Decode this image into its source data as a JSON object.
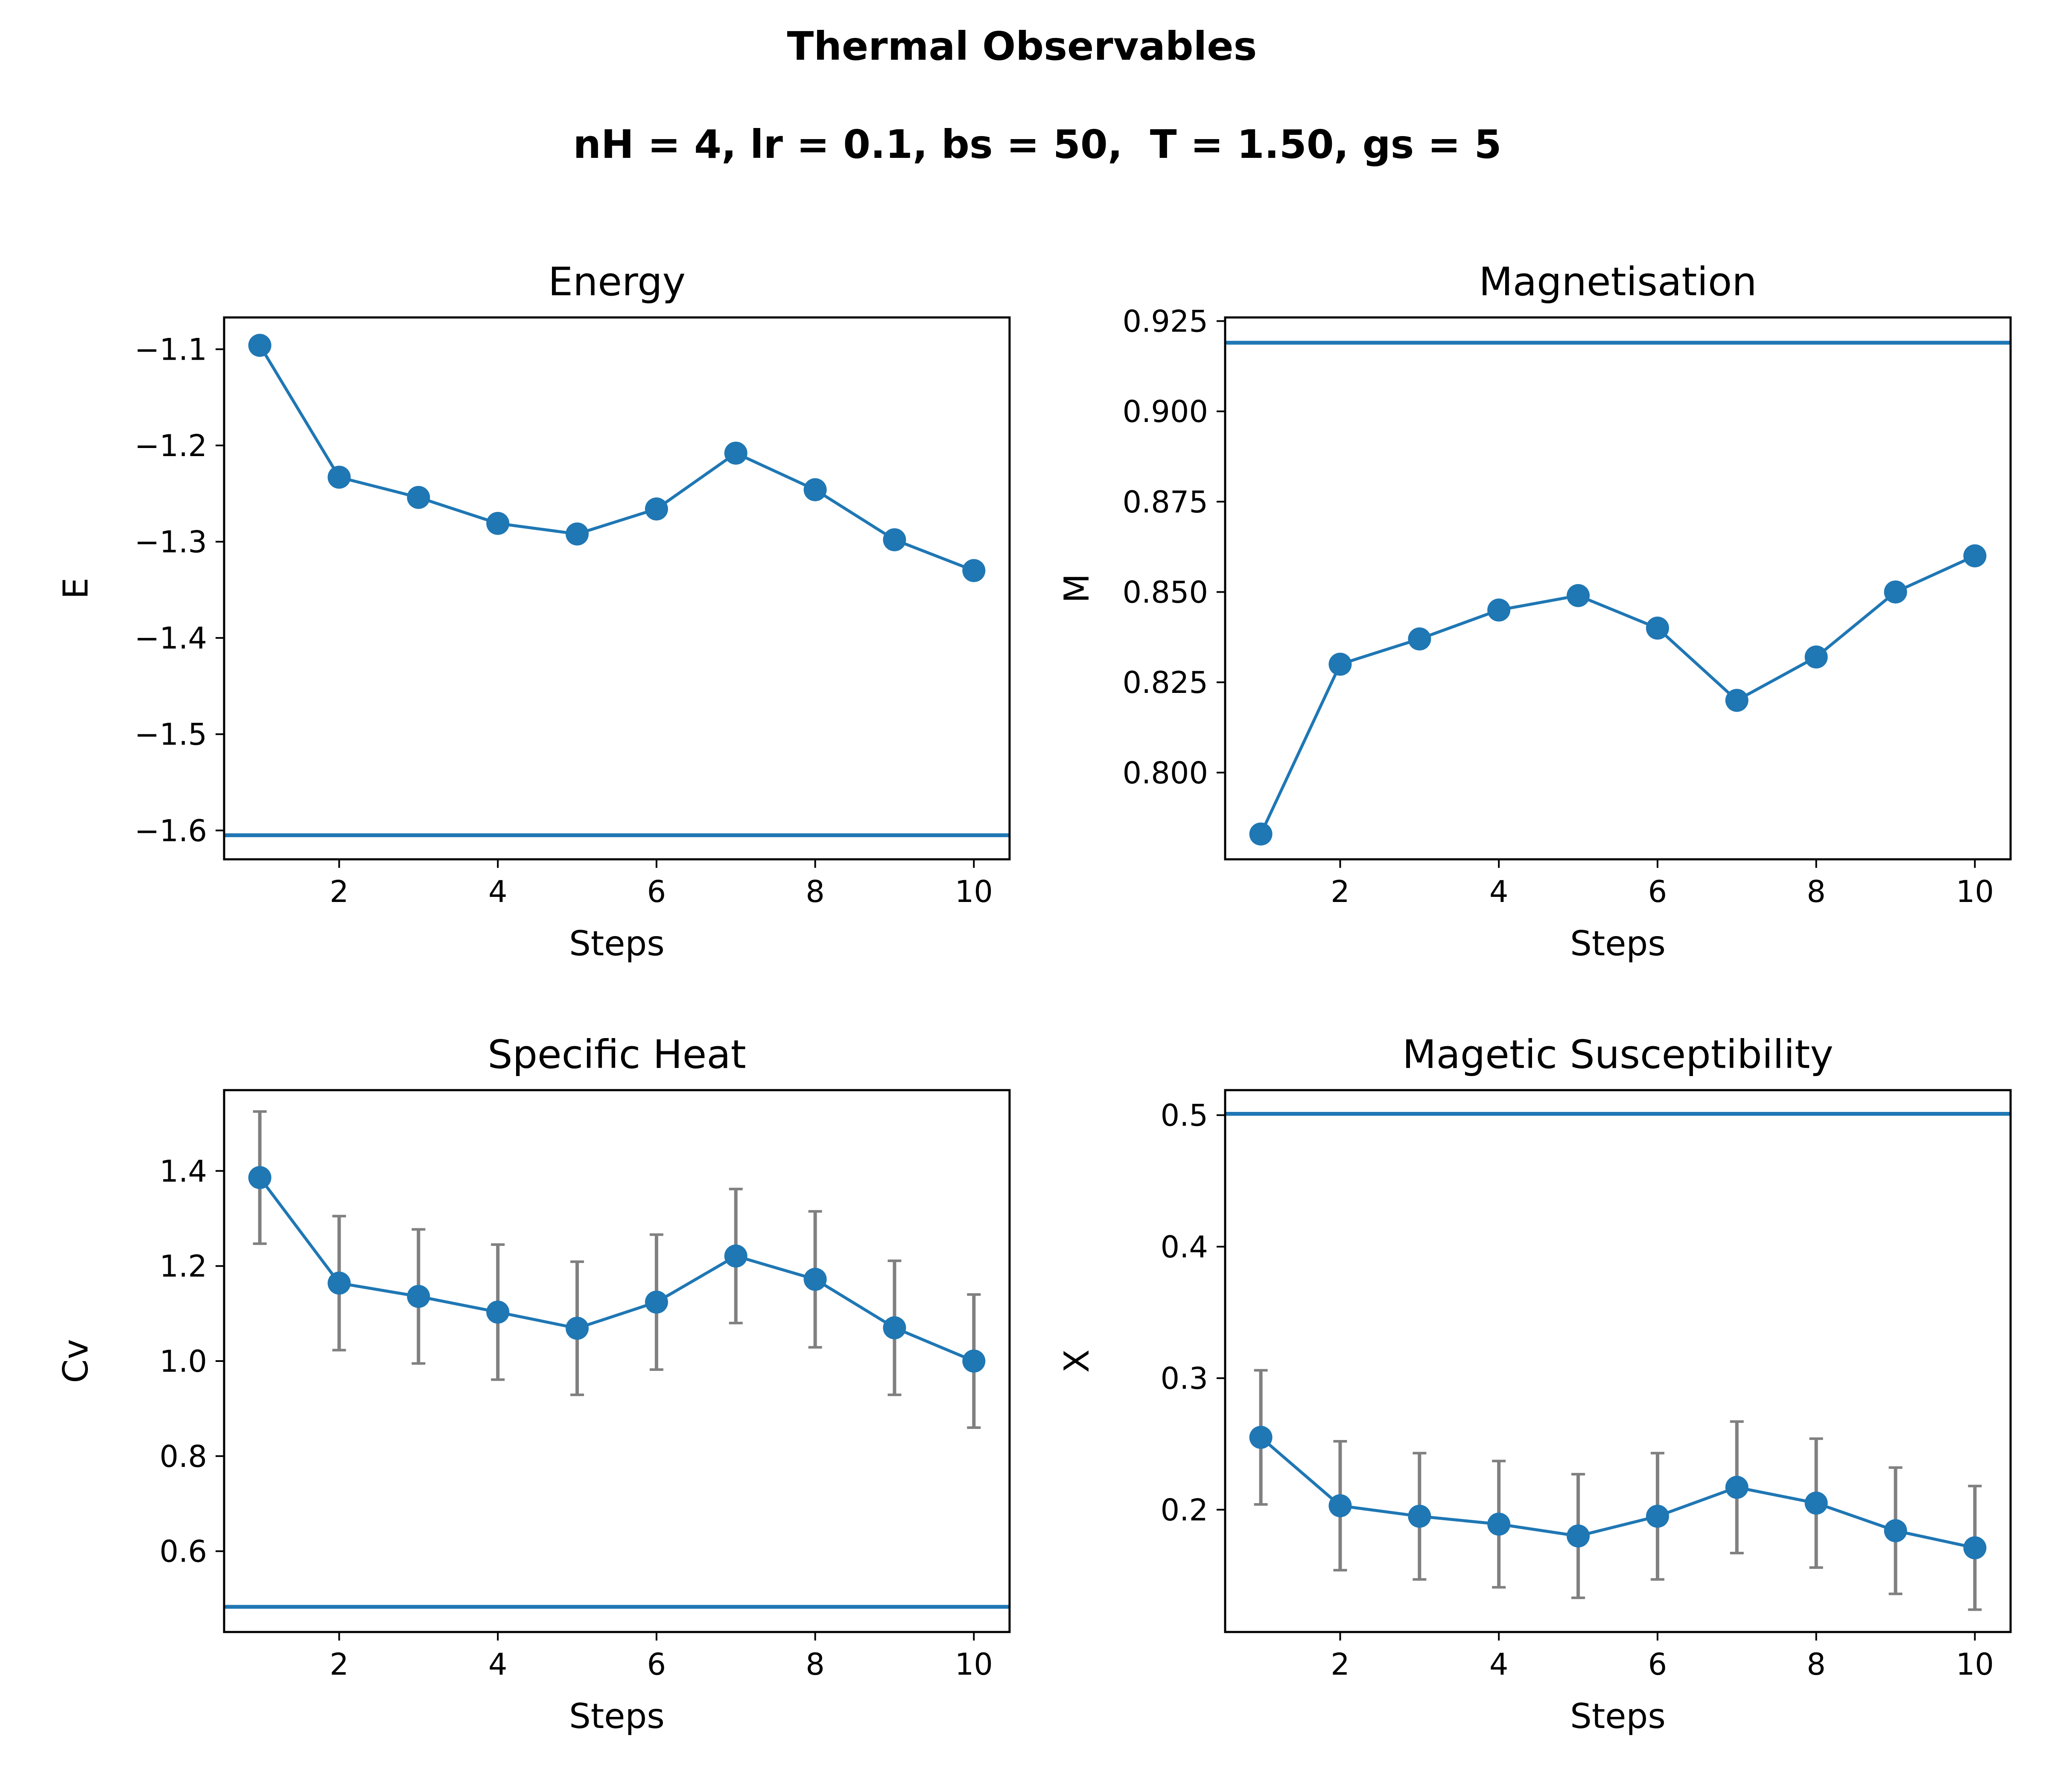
{
  "figure": {
    "title": "Thermal Observables",
    "subtitle": "nH = 4, lr = 0.1, bs = 50,  T = 1.50, gs = 5",
    "line_color": "#1f77b4",
    "errorbar_color": "#808080"
  },
  "chart_data": [
    {
      "type": "line",
      "title": "Energy",
      "xlabel": "Steps",
      "ylabel": "E",
      "xlim": [
        0.55,
        10.45
      ],
      "ylim": [
        -1.63,
        -1.067
      ],
      "xticks": [
        2,
        4,
        6,
        8,
        10
      ],
      "xtick_labels": [
        "2",
        "4",
        "6",
        "8",
        "10"
      ],
      "yticks": [
        -1.6,
        -1.5,
        -1.4,
        -1.3,
        -1.2,
        -1.1
      ],
      "ytick_labels": [
        "−1.6",
        "−1.5",
        "−1.4",
        "−1.3",
        "−1.2",
        "−1.1"
      ],
      "x": [
        1,
        2,
        3,
        4,
        5,
        6,
        7,
        8,
        9,
        10
      ],
      "series": [
        {
          "values": [
            -1.096,
            -1.233,
            -1.254,
            -1.281,
            -1.292,
            -1.266,
            -1.208,
            -1.246,
            -1.298,
            -1.33
          ]
        }
      ],
      "hline": -1.605,
      "errors": null
    },
    {
      "type": "line",
      "title": "Magnetisation",
      "xlabel": "Steps",
      "ylabel": "M",
      "xlim": [
        0.55,
        10.45
      ],
      "ylim": [
        0.776,
        0.926
      ],
      "xticks": [
        2,
        4,
        6,
        8,
        10
      ],
      "xtick_labels": [
        "2",
        "4",
        "6",
        "8",
        "10"
      ],
      "yticks": [
        0.8,
        0.825,
        0.85,
        0.875,
        0.9,
        0.925
      ],
      "ytick_labels": [
        "0.800",
        "0.825",
        "0.850",
        "0.875",
        "0.900",
        "0.925"
      ],
      "x": [
        1,
        2,
        3,
        4,
        5,
        6,
        7,
        8,
        9,
        10
      ],
      "series": [
        {
          "values": [
            0.783,
            0.83,
            0.837,
            0.845,
            0.849,
            0.84,
            0.82,
            0.832,
            0.85,
            0.86
          ]
        }
      ],
      "hline": 0.919,
      "errors": null
    },
    {
      "type": "line",
      "title": "Specific Heat",
      "xlabel": "Steps",
      "ylabel": "Cv",
      "xlim": [
        0.55,
        10.45
      ],
      "ylim": [
        0.43,
        1.57
      ],
      "xticks": [
        2,
        4,
        6,
        8,
        10
      ],
      "xtick_labels": [
        "2",
        "4",
        "6",
        "8",
        "10"
      ],
      "yticks": [
        0.6,
        0.8,
        1.0,
        1.2,
        1.4
      ],
      "ytick_labels": [
        "0.6",
        "0.8",
        "1.0",
        "1.2",
        "1.4"
      ],
      "x": [
        1,
        2,
        3,
        4,
        5,
        6,
        7,
        8,
        9,
        10
      ],
      "series": [
        {
          "values": [
            1.386,
            1.164,
            1.136,
            1.103,
            1.069,
            1.124,
            1.221,
            1.172,
            1.07,
            1.0
          ]
        }
      ],
      "hline": 0.483,
      "errors": [
        0.139,
        0.141,
        0.141,
        0.142,
        0.14,
        0.142,
        0.141,
        0.143,
        0.141,
        0.14
      ]
    },
    {
      "type": "line",
      "title": "Magetic Susceptibility",
      "xlabel": "Steps",
      "ylabel": "X",
      "xlim": [
        0.55,
        10.45
      ],
      "ylim": [
        0.107,
        0.519
      ],
      "xticks": [
        2,
        4,
        6,
        8,
        10
      ],
      "xtick_labels": [
        "2",
        "4",
        "6",
        "8",
        "10"
      ],
      "yticks": [
        0.2,
        0.3,
        0.4,
        0.5
      ],
      "ytick_labels": [
        "0.2",
        "0.3",
        "0.4",
        "0.5"
      ],
      "x": [
        1,
        2,
        3,
        4,
        5,
        6,
        7,
        8,
        9,
        10
      ],
      "series": [
        {
          "values": [
            0.255,
            0.203,
            0.195,
            0.189,
            0.18,
            0.195,
            0.217,
            0.205,
            0.184,
            0.171
          ]
        }
      ],
      "hline": 0.501,
      "errors": [
        0.051,
        0.049,
        0.048,
        0.048,
        0.047,
        0.048,
        0.05,
        0.049,
        0.048,
        0.047
      ]
    }
  ]
}
